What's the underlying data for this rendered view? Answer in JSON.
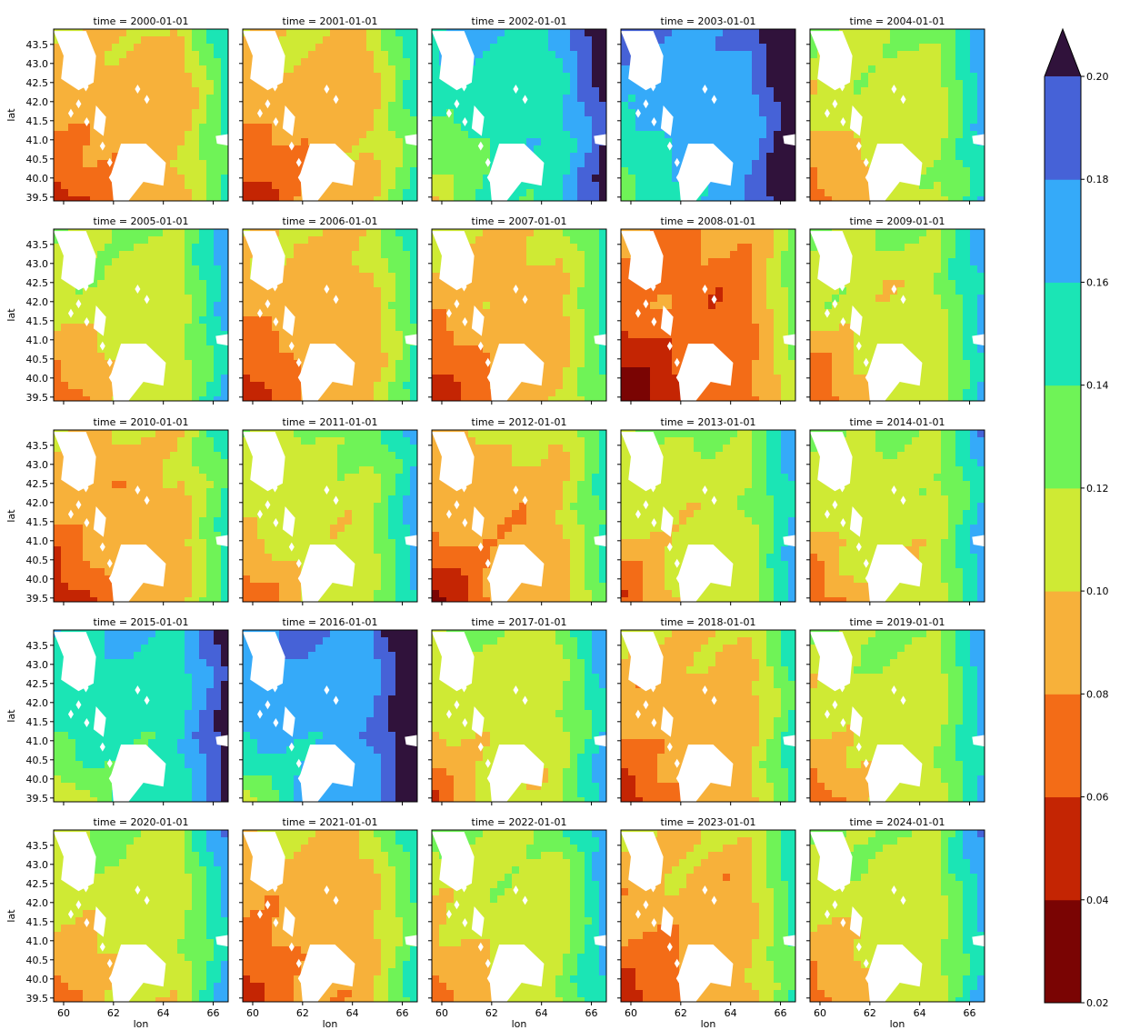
{
  "chart_data": {
    "type": "heatmap",
    "layout": "5x5 facet grid (one panel per year)",
    "panel_titles": [
      "time = 2000-01-01",
      "time = 2001-01-01",
      "time = 2002-01-01",
      "time = 2003-01-01",
      "time = 2004-01-01",
      "time = 2005-01-01",
      "time = 2006-01-01",
      "time = 2007-01-01",
      "time = 2008-01-01",
      "time = 2009-01-01",
      "time = 2010-01-01",
      "time = 2011-01-01",
      "time = 2012-01-01",
      "time = 2013-01-01",
      "time = 2014-01-01",
      "time = 2015-01-01",
      "time = 2016-01-01",
      "time = 2017-01-01",
      "time = 2018-01-01",
      "time = 2019-01-01",
      "time = 2020-01-01",
      "time = 2021-01-01",
      "time = 2022-01-01",
      "time = 2023-01-01",
      "time = 2024-01-01"
    ],
    "xlabel": "lon",
    "ylabel": "lat",
    "xlim": [
      59.6,
      66.6
    ],
    "ylim": [
      39.4,
      43.9
    ],
    "xticks": [
      60,
      62,
      64,
      66
    ],
    "yticks": [
      39.5,
      40.0,
      40.5,
      41.0,
      41.5,
      42.0,
      42.5,
      43.0,
      43.5
    ],
    "xtick_labels": [
      "60",
      "62",
      "64",
      "66"
    ],
    "ytick_labels": [
      "39.5",
      "40.0",
      "40.5",
      "41.0",
      "41.5",
      "42.0",
      "42.5",
      "43.0",
      "43.5"
    ],
    "colorbar": {
      "levels": [
        0.02,
        0.04,
        0.06,
        0.08,
        0.1,
        0.12,
        0.14,
        0.16,
        0.18,
        0.2
      ],
      "tick_labels": [
        "0.02",
        "0.04",
        "0.06",
        "0.08",
        "0.10",
        "0.12",
        "0.14",
        "0.16",
        "0.18",
        "0.20"
      ],
      "colors": [
        "#7a0403",
        "#c42503",
        "#f36c17",
        "#f7b13a",
        "#cfea34",
        "#6ff357",
        "#1be5b5",
        "#35aaf9",
        "#4662d7"
      ],
      "over_color": "#30123b",
      "extend": "max"
    },
    "panel_field_levels": [
      3,
      3,
      6,
      7,
      4,
      4,
      3,
      3,
      2,
      4,
      3,
      4,
      3,
      4,
      4,
      6,
      7,
      4,
      3,
      4,
      4,
      3,
      4,
      3,
      4
    ],
    "missing_color": "#ffffff"
  }
}
